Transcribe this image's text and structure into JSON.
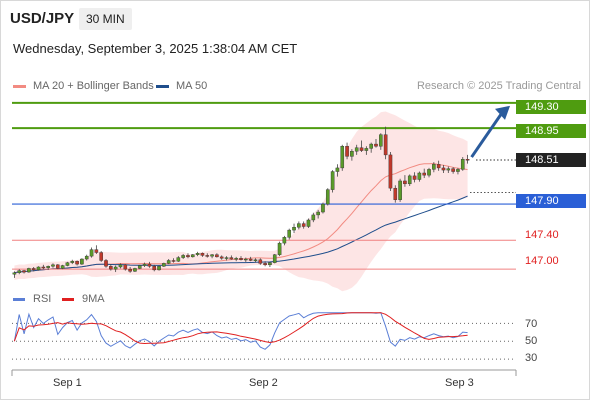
{
  "header": {
    "symbol": "USD/JPY",
    "timeframe": "30 MIN",
    "datetime": "Wednesday, September 3, 2025 1:38:04 AM CET"
  },
  "legend": {
    "ma20_label": "MA 20 + Bollinger Bands",
    "ma20_color": "#f28b82",
    "ma50_label": "MA 50",
    "ma50_color": "#1f4e8c",
    "credit": "Research © 2025 Trading Central"
  },
  "levels": {
    "r2": {
      "value": "149.30",
      "color": "#4f9c10"
    },
    "r1": {
      "value": "148.95",
      "color": "#4f9c10"
    },
    "last": {
      "value": "148.51",
      "color": "#222222"
    },
    "pivot": {
      "value": "147.90",
      "color": "#2a5fd6"
    },
    "s1": {
      "value": "147.40",
      "color": "#e02020"
    },
    "s2": {
      "value": "147.00",
      "color": "#e02020"
    }
  },
  "rsi_panel": {
    "rsi_label": "RSI",
    "rsi_color": "#5b7fd6",
    "ma_label": "9MA",
    "ma_color": "#e02020",
    "ticks": [
      "70",
      "50",
      "30"
    ]
  },
  "x_axis": {
    "labels": [
      "Sep 1",
      "Sep 2",
      "Sep 3"
    ]
  },
  "chart_data": {
    "type": "candlestick",
    "instrument": "USD/JPY",
    "interval": "30 MIN",
    "price_range": [
      146.85,
      149.45
    ],
    "resistance_levels": [
      149.3,
      148.95
    ],
    "pivot": 147.9,
    "support_levels": [
      147.4,
      147.0
    ],
    "last_price": 148.51,
    "ohlc": [
      [
        146.93,
        146.97,
        146.88,
        146.95
      ],
      [
        146.95,
        147.0,
        146.93,
        146.98
      ],
      [
        146.98,
        146.99,
        146.94,
        146.96
      ],
      [
        146.96,
        147.02,
        146.95,
        147.01
      ],
      [
        147.01,
        147.03,
        146.97,
        146.99
      ],
      [
        146.99,
        147.04,
        146.98,
        147.03
      ],
      [
        147.03,
        147.06,
        147.0,
        147.02
      ],
      [
        147.02,
        147.05,
        146.99,
        147.04
      ],
      [
        147.04,
        147.08,
        147.02,
        147.06
      ],
      [
        147.06,
        147.07,
        147.0,
        147.01
      ],
      [
        147.01,
        147.06,
        147.0,
        147.05
      ],
      [
        147.05,
        147.1,
        147.04,
        147.09
      ],
      [
        147.09,
        147.13,
        147.07,
        147.11
      ],
      [
        147.11,
        147.12,
        147.05,
        147.07
      ],
      [
        147.07,
        147.15,
        147.06,
        147.14
      ],
      [
        147.14,
        147.2,
        147.12,
        147.18
      ],
      [
        147.18,
        147.3,
        147.16,
        147.27
      ],
      [
        147.27,
        147.33,
        147.21,
        147.23
      ],
      [
        147.23,
        147.25,
        147.1,
        147.12
      ],
      [
        147.12,
        147.14,
        147.02,
        147.04
      ],
      [
        147.04,
        147.07,
        146.98,
        147.0
      ],
      [
        147.0,
        147.05,
        146.96,
        147.03
      ],
      [
        147.03,
        147.08,
        147.01,
        147.06
      ],
      [
        147.06,
        147.07,
        146.98,
        147.0
      ],
      [
        147.0,
        147.03,
        146.95,
        146.97
      ],
      [
        146.97,
        147.02,
        146.96,
        147.01
      ],
      [
        147.01,
        147.06,
        147.0,
        147.05
      ],
      [
        147.05,
        147.09,
        147.03,
        147.07
      ],
      [
        147.07,
        147.1,
        147.02,
        147.04
      ],
      [
        147.04,
        147.06,
        146.97,
        146.99
      ],
      [
        146.99,
        147.05,
        146.98,
        147.04
      ],
      [
        147.04,
        147.09,
        147.03,
        147.08
      ],
      [
        147.08,
        147.14,
        147.07,
        147.12
      ],
      [
        147.12,
        147.15,
        147.09,
        147.11
      ],
      [
        147.11,
        147.18,
        147.1,
        147.16
      ],
      [
        147.16,
        147.21,
        147.14,
        147.19
      ],
      [
        147.19,
        147.22,
        147.15,
        147.17
      ],
      [
        147.17,
        147.21,
        147.16,
        147.2
      ],
      [
        147.2,
        147.24,
        147.18,
        147.22
      ],
      [
        147.22,
        147.23,
        147.17,
        147.19
      ],
      [
        147.19,
        147.22,
        147.16,
        147.18
      ],
      [
        147.18,
        147.21,
        147.15,
        147.2
      ],
      [
        147.2,
        147.22,
        147.16,
        147.17
      ],
      [
        147.17,
        147.19,
        147.13,
        147.15
      ],
      [
        147.15,
        147.18,
        147.12,
        147.16
      ],
      [
        147.16,
        147.19,
        147.13,
        147.14
      ],
      [
        147.14,
        147.17,
        147.11,
        147.15
      ],
      [
        147.15,
        147.18,
        147.12,
        147.13
      ],
      [
        147.13,
        147.16,
        147.1,
        147.14
      ],
      [
        147.14,
        147.17,
        147.11,
        147.12
      ],
      [
        147.12,
        147.15,
        147.09,
        147.13
      ],
      [
        147.13,
        147.15,
        147.06,
        147.08
      ],
      [
        147.08,
        147.11,
        147.04,
        147.06
      ],
      [
        147.06,
        147.1,
        147.03,
        147.09
      ],
      [
        147.09,
        147.21,
        147.08,
        147.2
      ],
      [
        147.2,
        147.38,
        147.18,
        147.36
      ],
      [
        147.36,
        147.46,
        147.33,
        147.44
      ],
      [
        147.44,
        147.56,
        147.41,
        147.54
      ],
      [
        147.54,
        147.63,
        147.5,
        147.58
      ],
      [
        147.58,
        147.66,
        147.55,
        147.63
      ],
      [
        147.63,
        147.66,
        147.56,
        147.59
      ],
      [
        147.59,
        147.7,
        147.57,
        147.68
      ],
      [
        147.68,
        147.78,
        147.65,
        147.75
      ],
      [
        147.75,
        147.82,
        147.7,
        147.79
      ],
      [
        147.79,
        147.92,
        147.77,
        147.9
      ],
      [
        147.9,
        148.12,
        147.88,
        148.1
      ],
      [
        148.1,
        148.37,
        148.06,
        148.35
      ],
      [
        148.35,
        148.45,
        148.28,
        148.4
      ],
      [
        148.4,
        148.72,
        148.36,
        148.7
      ],
      [
        148.7,
        148.75,
        148.52,
        148.56
      ],
      [
        148.56,
        148.66,
        148.5,
        148.63
      ],
      [
        148.63,
        148.72,
        148.58,
        148.68
      ],
      [
        148.68,
        148.78,
        148.62,
        148.64
      ],
      [
        148.64,
        148.7,
        148.58,
        148.67
      ],
      [
        148.67,
        148.75,
        148.61,
        148.73
      ],
      [
        148.73,
        148.8,
        148.68,
        148.7
      ],
      [
        148.7,
        148.88,
        148.65,
        148.86
      ],
      [
        148.86,
        148.97,
        148.52,
        148.58
      ],
      [
        148.58,
        148.62,
        148.08,
        148.12
      ],
      [
        148.12,
        148.16,
        147.92,
        147.96
      ],
      [
        147.96,
        148.25,
        147.93,
        148.22
      ],
      [
        148.22,
        148.3,
        148.14,
        148.18
      ],
      [
        148.18,
        148.31,
        148.15,
        148.29
      ],
      [
        148.29,
        148.34,
        148.2,
        148.24
      ],
      [
        148.24,
        148.35,
        148.21,
        148.33
      ],
      [
        148.33,
        148.39,
        148.26,
        148.3
      ],
      [
        148.3,
        148.4,
        148.27,
        148.38
      ],
      [
        148.38,
        148.48,
        148.34,
        148.45
      ],
      [
        148.45,
        148.5,
        148.36,
        148.4
      ],
      [
        148.4,
        148.44,
        148.33,
        148.37
      ],
      [
        148.37,
        148.42,
        148.33,
        148.39
      ],
      [
        148.39,
        148.41,
        148.32,
        148.35
      ],
      [
        148.35,
        148.4,
        148.31,
        148.38
      ],
      [
        148.38,
        148.55,
        148.36,
        148.52
      ],
      [
        148.52,
        148.58,
        148.46,
        148.51
      ]
    ],
    "rsi_range": [
      20,
      85
    ]
  }
}
